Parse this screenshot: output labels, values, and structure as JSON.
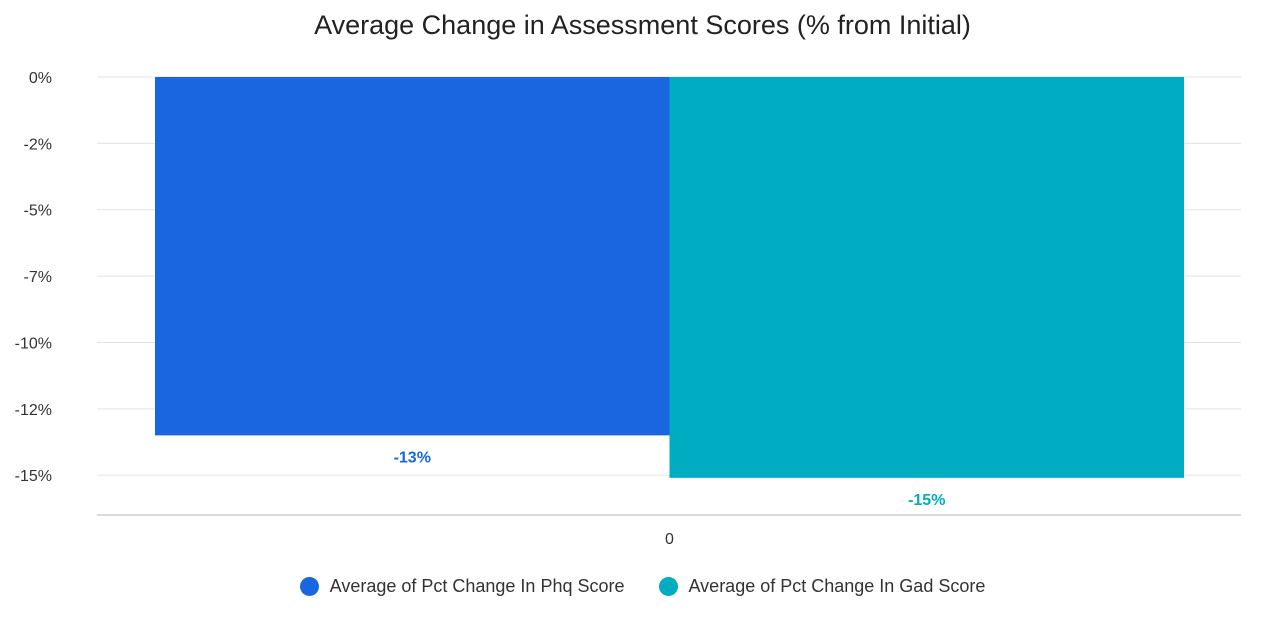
{
  "chart_data": {
    "type": "bar",
    "title": "Average Change in Assessment Scores (% from Initial)",
    "categories": [
      "0"
    ],
    "series": [
      {
        "name": "Average of Pct Change In Phq Score",
        "values": [
          -13.5
        ],
        "label": "-13%",
        "color": "#1a66e0"
      },
      {
        "name": "Average of Pct Change In Gad Score",
        "values": [
          -15.1
        ],
        "label": "-15%",
        "color": "#00acc1"
      }
    ],
    "ytick_labels": [
      "0%",
      "-2%",
      "-5%",
      "-7%",
      "-10%",
      "-12%",
      "-15%"
    ],
    "ylim": [
      -16.5,
      0
    ],
    "legend_position": "bottom",
    "grid": true,
    "xlabel": "",
    "ylabel": ""
  }
}
